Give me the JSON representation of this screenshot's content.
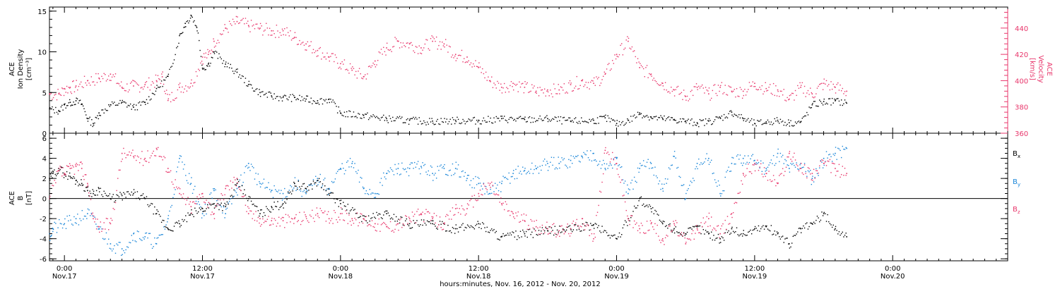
{
  "chart_data": [
    {
      "type": "scatter",
      "panel": "density-velocity",
      "xlabel": "hours:minutes, Nov. 16, 2012 - Nov. 20, 2012",
      "x_ticks": [
        {
          "hours": 0,
          "time": "0:00",
          "date": "Nov.17"
        },
        {
          "hours": 12,
          "time": "12:00",
          "date": "Nov.17"
        },
        {
          "hours": 24,
          "time": "0:00",
          "date": "Nov.18"
        },
        {
          "hours": 36,
          "time": "12:00",
          "date": "Nov.18"
        },
        {
          "hours": 48,
          "time": "0:00",
          "date": "Nov.19"
        },
        {
          "hours": 60,
          "time": "12:00",
          "date": "Nov.19"
        },
        {
          "hours": 72,
          "time": "0:00",
          "date": "Nov.20"
        }
      ],
      "x_unit_note": "hours from Nov.17 0:00",
      "xlim": [
        -1.3,
        82
      ],
      "ylabel_left": [
        "ACE",
        "Ion Density",
        "[cm⁻³]"
      ],
      "ylim_left": [
        0,
        15.5
      ],
      "yticks_left": [
        "0",
        "5",
        "10",
        "15"
      ],
      "ylabel_right": [
        "ACE",
        "Velocity",
        "[km/s]"
      ],
      "ylim_right": [
        360,
        456
      ],
      "yticks_right": [
        "360",
        "380",
        "400",
        "420",
        "440"
      ],
      "right_axis_color": "#e8366b",
      "series": [
        {
          "name": "Ion Density",
          "axis": "left",
          "color": "#000000",
          "x": [
            -1.3,
            -0.5,
            0,
            0.5,
            1,
            1.5,
            2,
            2.5,
            3,
            4,
            5,
            6,
            7,
            8,
            9,
            10,
            10.5,
            11,
            11.5,
            12,
            12.5,
            13,
            14,
            15,
            16,
            17,
            18,
            19,
            20,
            21,
            22,
            23,
            24,
            26,
            28,
            30,
            32,
            34,
            36,
            38,
            40,
            42,
            44,
            46,
            47,
            48,
            49,
            50,
            51,
            52,
            53,
            54,
            55,
            56,
            57,
            58,
            59,
            60,
            61,
            62,
            63,
            64,
            65,
            66,
            67,
            68
          ],
          "y": [
            3,
            2.8,
            3.5,
            3.8,
            4.0,
            3.6,
            1.8,
            1.2,
            2.5,
            3.5,
            3.8,
            3.2,
            3.8,
            5.5,
            7.0,
            12.0,
            13.5,
            14.5,
            13.0,
            8.0,
            8.5,
            10.0,
            8.5,
            7.5,
            6.0,
            5.0,
            4.6,
            4.4,
            4.4,
            4.2,
            4.0,
            4.2,
            2.5,
            2.2,
            1.8,
            1.6,
            1.5,
            1.6,
            1.6,
            1.8,
            1.7,
            1.8,
            1.5,
            1.6,
            1.9,
            1.2,
            1.6,
            2.5,
            2.0,
            1.8,
            1.7,
            1.5,
            1.3,
            1.5,
            1.9,
            2.6,
            1.8,
            1.2,
            1.4,
            1.6,
            1.3,
            1.4,
            3.5,
            3.9,
            4.0,
            3.7
          ]
        },
        {
          "name": "Velocity",
          "axis": "right",
          "color": "#e8366b",
          "x": [
            -1.3,
            -0.5,
            0,
            0.5,
            1,
            2,
            3,
            4,
            5,
            6,
            7,
            8,
            8.5,
            9,
            10,
            11,
            12,
            12.5,
            13,
            14,
            15,
            16,
            17,
            18,
            19,
            20,
            21,
            22,
            23,
            24,
            25,
            26,
            27,
            28,
            29,
            30,
            31,
            32,
            33,
            34,
            35,
            36,
            37,
            38,
            39,
            40,
            41,
            42,
            43,
            44,
            45,
            46,
            47,
            48,
            49,
            50,
            51,
            52,
            53,
            54,
            55,
            56,
            57,
            58,
            59,
            60,
            61,
            62,
            63,
            64,
            65,
            66,
            67,
            68
          ],
          "y": [
            390,
            390,
            394,
            395,
            396,
            400,
            402,
            405,
            395,
            396,
            397,
            400,
            403,
            385,
            395,
            398,
            418,
            420,
            430,
            440,
            445,
            442,
            440,
            438,
            438,
            433,
            428,
            423,
            418,
            413,
            408,
            403,
            415,
            425,
            430,
            428,
            425,
            430,
            428,
            420,
            418,
            410,
            400,
            395,
            398,
            395,
            392,
            393,
            393,
            397,
            400,
            398,
            405,
            420,
            430,
            410,
            405,
            398,
            393,
            388,
            395,
            390,
            395,
            392,
            392,
            398,
            394,
            393,
            386,
            395,
            390,
            398,
            395,
            392
          ]
        }
      ]
    },
    {
      "type": "scatter",
      "panel": "magnetic-field",
      "ylabel": [
        "ACE",
        "B",
        "[nT]"
      ],
      "ylim": [
        -6.2,
        6.5
      ],
      "yticks": [
        "-6",
        "-4",
        "-2",
        "0",
        "2",
        "4",
        "6"
      ],
      "zero_line": true,
      "legend_position": "right",
      "series": [
        {
          "name": "Bx",
          "legend_main": "B",
          "legend_sub": "x",
          "color": "#000000",
          "x": [
            -1.3,
            -1,
            -0.5,
            0,
            0.5,
            1,
            1.5,
            2,
            2.5,
            3,
            4,
            5,
            6,
            7,
            8,
            9,
            10,
            11,
            12,
            13,
            14,
            15,
            16,
            17,
            18,
            19,
            20,
            21,
            22,
            23,
            24,
            26,
            28,
            30,
            32,
            34,
            36,
            38,
            40,
            42,
            44,
            46,
            48,
            49,
            50,
            51,
            52,
            53,
            54,
            55,
            56,
            57,
            58,
            59,
            60,
            61,
            62,
            63,
            64,
            65,
            66,
            67,
            68
          ],
          "y": [
            2.0,
            2.5,
            3.0,
            2.5,
            2.2,
            1.8,
            1.5,
            0.8,
            0.5,
            1.0,
            0,
            0.3,
            0.5,
            0,
            -1.5,
            -3.0,
            -2.5,
            -1.5,
            -1.0,
            -0.5,
            -0.8,
            1.5,
            0,
            -1.5,
            -0.8,
            -0.5,
            1.5,
            1.0,
            1.8,
            0.5,
            -0.5,
            -2.0,
            -1.5,
            -2.5,
            -2.5,
            -3.0,
            -2.5,
            -3.8,
            -3.5,
            -3.2,
            -3.0,
            -2.6,
            -4.0,
            -2.0,
            0,
            -1.0,
            -2.5,
            -3.0,
            -3.5,
            -2.8,
            -3.5,
            -4.0,
            -3.0,
            -3.5,
            -3.0,
            -2.8,
            -3.5,
            -4.5,
            -3.0,
            -2.5,
            -1.5,
            -3.0,
            -3.8
          ]
        },
        {
          "name": "By",
          "legend_main": "B",
          "legend_sub": "y",
          "color": "#1a86d8",
          "x": [
            -1.3,
            -1,
            0,
            1,
            2,
            3,
            4,
            5,
            6,
            7,
            8,
            9,
            10,
            11,
            12,
            13,
            14,
            15,
            16,
            17,
            18,
            19,
            20,
            21,
            22,
            23,
            24,
            25,
            26,
            27,
            28,
            29,
            30,
            31,
            32,
            33,
            34,
            35,
            36,
            37,
            38,
            39,
            40,
            41,
            42,
            43,
            44,
            45,
            46,
            47,
            48,
            49,
            50,
            51,
            52,
            53,
            54,
            55,
            56,
            57,
            58,
            59,
            60,
            61,
            62,
            63,
            64,
            65,
            66,
            67,
            68
          ],
          "y": [
            -3.5,
            -3.0,
            -2.5,
            -2.0,
            -1.5,
            -3.0,
            -4.5,
            -5.0,
            -3.5,
            -3.8,
            -4.5,
            -2.0,
            4.0,
            1.5,
            -1.5,
            0.8,
            -1.5,
            1.0,
            3.5,
            1.5,
            0.8,
            0.5,
            1.5,
            0.5,
            2.0,
            1.0,
            3.0,
            3.5,
            1.0,
            0.5,
            2.5,
            3.0,
            3.0,
            3.2,
            2.5,
            3.0,
            3.0,
            2.0,
            1.5,
            0.5,
            1.5,
            2.5,
            2.8,
            3.0,
            3.5,
            3.5,
            3.8,
            4.2,
            4.5,
            3.0,
            4.0,
            0.5,
            3.0,
            3.5,
            1.0,
            4.2,
            0,
            3.5,
            4.0,
            0.5,
            3.5,
            4.0,
            3.8,
            3.0,
            4.5,
            3.0,
            3.5,
            2.0,
            4.0,
            4.5,
            5.0
          ]
        },
        {
          "name": "Bz",
          "legend_main": "B",
          "legend_sub": "z",
          "color": "#e8366b",
          "x": [
            -1.3,
            -0.5,
            0,
            0.5,
            1,
            1.5,
            2,
            2.5,
            3,
            4,
            5,
            6,
            7,
            8,
            9,
            10,
            11,
            12,
            13,
            14,
            15,
            16,
            17,
            18,
            19,
            20,
            21,
            22,
            23,
            24,
            25,
            26,
            27,
            28,
            29,
            30,
            31,
            32,
            33,
            34,
            35,
            36,
            37,
            38,
            39,
            40,
            41,
            42,
            43,
            44,
            45,
            46,
            47,
            48,
            49,
            50,
            51,
            52,
            53,
            54,
            55,
            56,
            57,
            58,
            59,
            60,
            61,
            62,
            63,
            64,
            65,
            66,
            67,
            68
          ],
          "y": [
            0,
            2.8,
            2.5,
            3.0,
            3.2,
            3.0,
            1.5,
            -2.0,
            -2.8,
            -2.5,
            4.5,
            4.2,
            4.0,
            5.0,
            3.0,
            0.5,
            -0.8,
            0.5,
            -1.5,
            1.0,
            2.0,
            -1.5,
            -2.0,
            -2.2,
            -2.2,
            -2.0,
            -1.8,
            -1.5,
            -2.0,
            -1.5,
            -2.0,
            -2.0,
            -2.5,
            -2.8,
            -2.5,
            -2.0,
            -1.5,
            -2.0,
            -2.5,
            -1.0,
            -1.0,
            0.5,
            1.5,
            -0.5,
            -1.5,
            -2.2,
            -2.8,
            -3.0,
            -3.2,
            -3.0,
            -2.0,
            -4.0,
            4.8,
            3.5,
            -2.0,
            -3.0,
            -2.5,
            -4.0,
            -2.5,
            -4.5,
            -3.0,
            -2.0,
            -3.5,
            -1.5,
            2.5,
            3.5,
            2.5,
            1.5,
            4.5,
            3.0,
            2.5,
            3.5,
            3.0,
            2.5
          ]
        }
      ]
    }
  ]
}
